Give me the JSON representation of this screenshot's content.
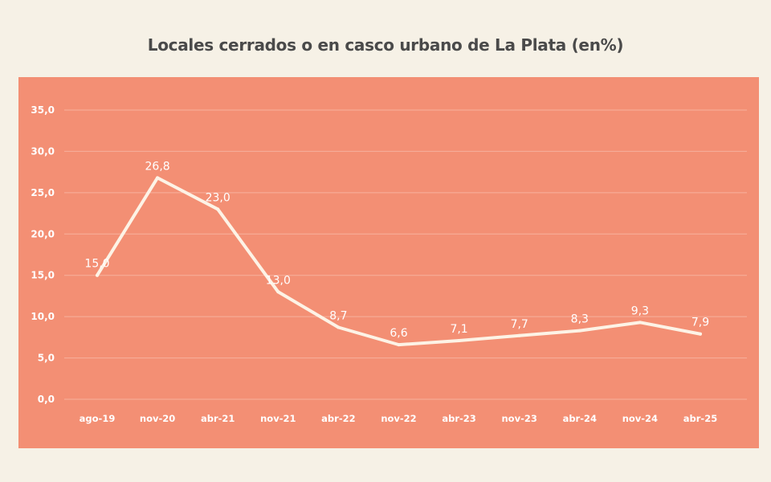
{
  "chart_data": {
    "type": "line",
    "title": "Locales cerrados o en casco urbano de La Plata (en%)",
    "categories": [
      "ago-19",
      "nov-20",
      "abr-21",
      "nov-21",
      "abr-22",
      "nov-22",
      "abr-23",
      "nov-23",
      "abr-24",
      "nov-24",
      "abr-25"
    ],
    "series": [
      {
        "values": [
          15.0,
          26.8,
          23.0,
          13.0,
          8.7,
          6.6,
          7.1,
          7.7,
          8.3,
          9.3,
          7.9
        ],
        "labels": [
          "15,0",
          "26,8",
          "23,0",
          "13,0",
          "8,7",
          "6,6",
          "7,1",
          "7,7",
          "8,3",
          "9,3",
          "7,9"
        ]
      }
    ],
    "yticks": [
      0,
      5,
      10,
      15,
      20,
      25,
      30,
      35
    ],
    "ytick_labels": [
      "0,0",
      "5,0",
      "10,0",
      "15,0",
      "20,0",
      "25,0",
      "30,0",
      "35,0"
    ],
    "ylim": [
      0,
      35
    ],
    "xlabel": "",
    "ylabel": "",
    "grid": true,
    "colors": {
      "page_background": "#f6f1e6",
      "plot_background": "#f38f74",
      "line": "#fdf3e6",
      "gridline": "#f7b19d",
      "text": "#ffffff",
      "title": "#4a4a4a"
    }
  }
}
